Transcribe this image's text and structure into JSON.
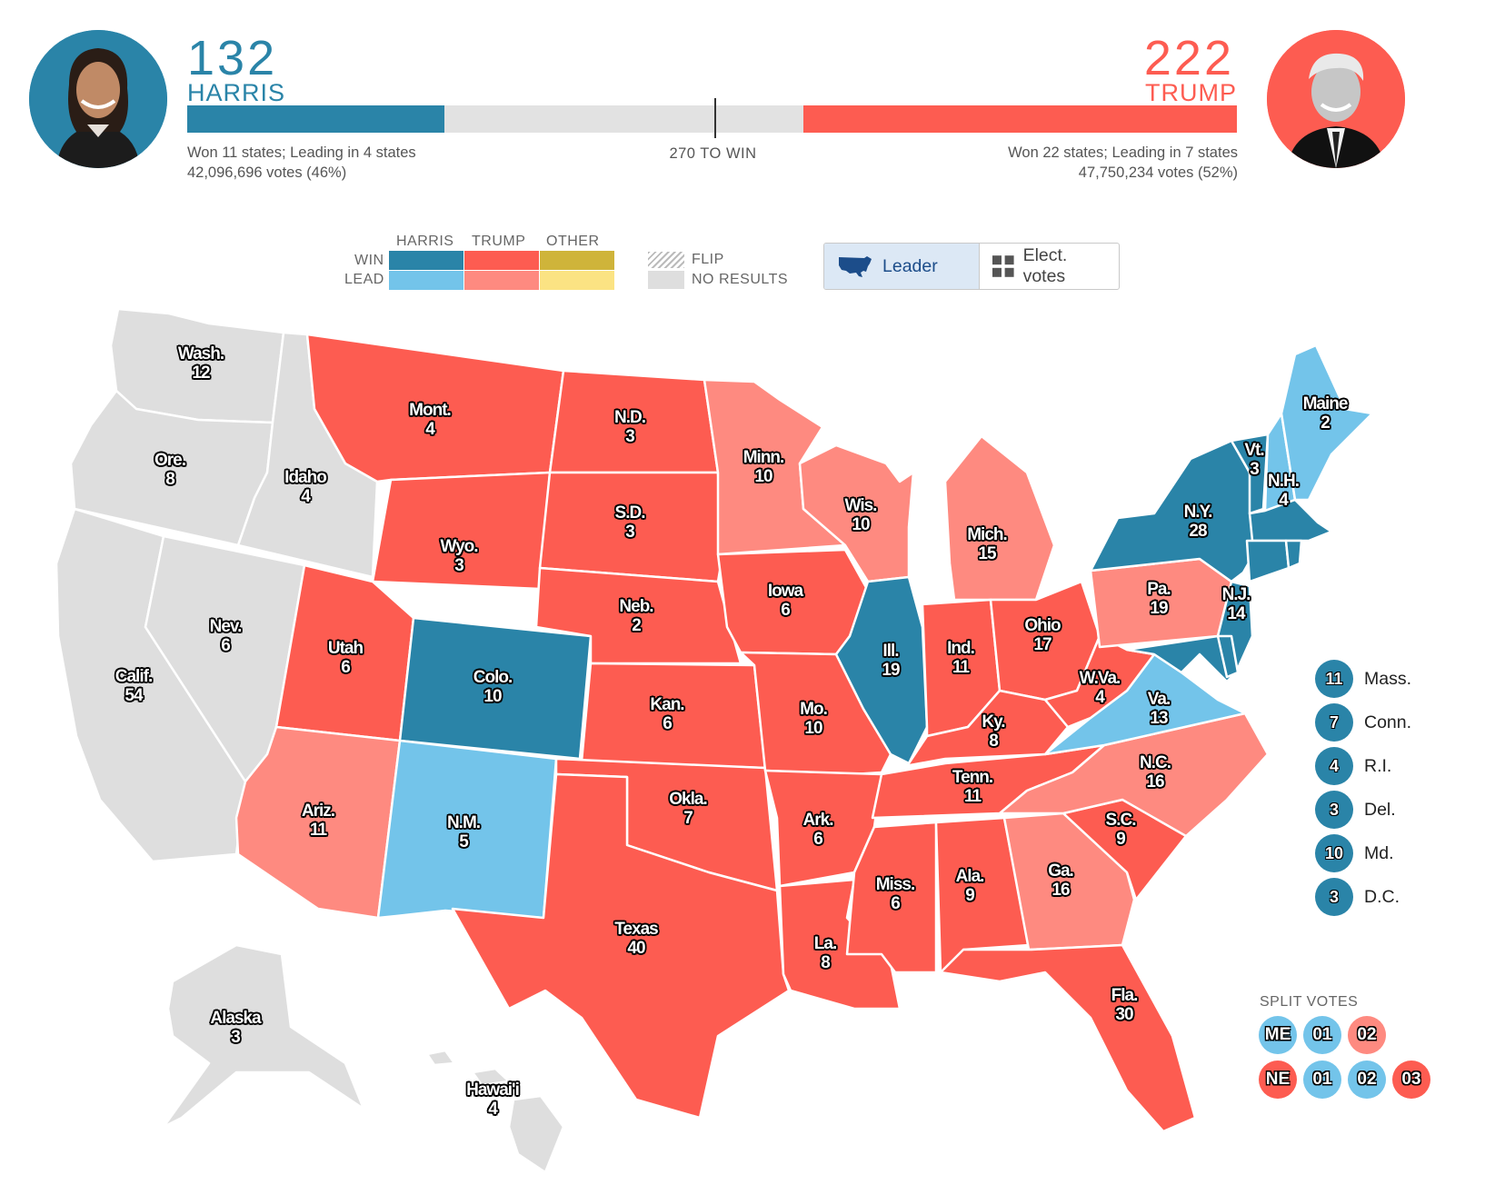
{
  "harris": {
    "ev": "132",
    "name": "HARRIS",
    "states_line": "Won 11 states; Leading in 4 states",
    "votes_line": "42,096,696 votes (46%)",
    "color": "#2a84a8"
  },
  "trump": {
    "ev": "222",
    "name": "TRUMP",
    "states_line": "Won 22 states; Leading in 7 states",
    "votes_line": "47,750,234 votes (52%)",
    "color": "#fd5c51"
  },
  "progress": {
    "harris_ev": 132,
    "trump_ev": 222,
    "total_ev": 538,
    "win_threshold": 270,
    "label": "270 TO WIN"
  },
  "legend": {
    "col_harris": "HARRIS",
    "col_trump": "TRUMP",
    "col_other": "OTHER",
    "row_win": "WIN",
    "row_lead": "LEAD",
    "flip": "FLIP",
    "no_results": "NO RESULTS",
    "colors": {
      "harris_win": "#2a84a8",
      "harris_lead": "#73c4ea",
      "trump_win": "#fd5c51",
      "trump_lead": "#fe8a80",
      "other_win": "#cfb43a",
      "other_lead": "#fbe383",
      "none": "#dedede"
    }
  },
  "toggle": {
    "leader": "Leader",
    "elect_votes": "Elect. votes",
    "selected": "leader",
    "leader_icon": "us-map-icon",
    "ev_icon": "grid-icon"
  },
  "states": [
    {
      "id": "wa",
      "name": "Wash.",
      "ev": "12",
      "status": "none"
    },
    {
      "id": "or",
      "name": "Ore.",
      "ev": "8",
      "status": "none"
    },
    {
      "id": "ca",
      "name": "Calif.",
      "ev": "54",
      "status": "none"
    },
    {
      "id": "id",
      "name": "Idaho",
      "ev": "4",
      "status": "none"
    },
    {
      "id": "nv",
      "name": "Nev.",
      "ev": "6",
      "status": "none"
    },
    {
      "id": "mt",
      "name": "Mont.",
      "ev": "4",
      "status": "trump_win"
    },
    {
      "id": "wy",
      "name": "Wyo.",
      "ev": "3",
      "status": "trump_win"
    },
    {
      "id": "ut",
      "name": "Utah",
      "ev": "6",
      "status": "trump_win"
    },
    {
      "id": "az",
      "name": "Ariz.",
      "ev": "11",
      "status": "trump_lead"
    },
    {
      "id": "co",
      "name": "Colo.",
      "ev": "10",
      "status": "harris_win"
    },
    {
      "id": "nm",
      "name": "N.M.",
      "ev": "5",
      "status": "harris_lead"
    },
    {
      "id": "nd",
      "name": "N.D.",
      "ev": "3",
      "status": "trump_win"
    },
    {
      "id": "sd",
      "name": "S.D.",
      "ev": "3",
      "status": "trump_win"
    },
    {
      "id": "ne",
      "name": "Neb.",
      "ev": "2",
      "status": "trump_win"
    },
    {
      "id": "ks",
      "name": "Kan.",
      "ev": "6",
      "status": "trump_win"
    },
    {
      "id": "ok",
      "name": "Okla.",
      "ev": "7",
      "status": "trump_win"
    },
    {
      "id": "tx",
      "name": "Texas",
      "ev": "40",
      "status": "trump_win"
    },
    {
      "id": "mn",
      "name": "Minn.",
      "ev": "10",
      "status": "trump_lead"
    },
    {
      "id": "ia",
      "name": "Iowa",
      "ev": "6",
      "status": "trump_win"
    },
    {
      "id": "mo",
      "name": "Mo.",
      "ev": "10",
      "status": "trump_win"
    },
    {
      "id": "ar",
      "name": "Ark.",
      "ev": "6",
      "status": "trump_win"
    },
    {
      "id": "la",
      "name": "La.",
      "ev": "8",
      "status": "trump_win"
    },
    {
      "id": "wi",
      "name": "Wis.",
      "ev": "10",
      "status": "trump_lead"
    },
    {
      "id": "il",
      "name": "Ill.",
      "ev": "19",
      "status": "harris_win"
    },
    {
      "id": "mi",
      "name": "Mich.",
      "ev": "15",
      "status": "trump_lead"
    },
    {
      "id": "in",
      "name": "Ind.",
      "ev": "11",
      "status": "trump_win"
    },
    {
      "id": "oh",
      "name": "Ohio",
      "ev": "17",
      "status": "trump_win"
    },
    {
      "id": "ky",
      "name": "Ky.",
      "ev": "8",
      "status": "trump_win"
    },
    {
      "id": "tn",
      "name": "Tenn.",
      "ev": "11",
      "status": "trump_win"
    },
    {
      "id": "ms",
      "name": "Miss.",
      "ev": "6",
      "status": "trump_win"
    },
    {
      "id": "al",
      "name": "Ala.",
      "ev": "9",
      "status": "trump_win"
    },
    {
      "id": "ga",
      "name": "Ga.",
      "ev": "16",
      "status": "trump_lead"
    },
    {
      "id": "fl",
      "name": "Fla.",
      "ev": "30",
      "status": "trump_win"
    },
    {
      "id": "sc",
      "name": "S.C.",
      "ev": "9",
      "status": "trump_win"
    },
    {
      "id": "nc",
      "name": "N.C.",
      "ev": "16",
      "status": "trump_lead"
    },
    {
      "id": "va",
      "name": "Va.",
      "ev": "13",
      "status": "harris_lead"
    },
    {
      "id": "wv",
      "name": "W.Va.",
      "ev": "4",
      "status": "trump_win"
    },
    {
      "id": "pa",
      "name": "Pa.",
      "ev": "19",
      "status": "trump_lead"
    },
    {
      "id": "ny",
      "name": "N.Y.",
      "ev": "28",
      "status": "harris_win"
    },
    {
      "id": "nj",
      "name": "N.J.",
      "ev": "14",
      "status": "harris_win"
    },
    {
      "id": "vt",
      "name": "Vt.",
      "ev": "3",
      "status": "harris_win"
    },
    {
      "id": "nh",
      "name": "N.H.",
      "ev": "4",
      "status": "harris_lead"
    },
    {
      "id": "me",
      "name": "Maine",
      "ev": "2",
      "status": "harris_lead"
    },
    {
      "id": "ak",
      "name": "Alaska",
      "ev": "3",
      "status": "none"
    },
    {
      "id": "hi",
      "name": "Hawai'i",
      "ev": "4",
      "status": "none"
    }
  ],
  "small_states": [
    {
      "name": "Mass.",
      "ev": "11",
      "status": "harris_win"
    },
    {
      "name": "Conn.",
      "ev": "7",
      "status": "harris_win"
    },
    {
      "name": "R.I.",
      "ev": "4",
      "status": "harris_win"
    },
    {
      "name": "Del.",
      "ev": "3",
      "status": "harris_win"
    },
    {
      "name": "Md.",
      "ev": "10",
      "status": "harris_win"
    },
    {
      "name": "D.C.",
      "ev": "3",
      "status": "harris_win"
    }
  ],
  "split_votes": {
    "title": "SPLIT VOTES",
    "maine": [
      {
        "label": "ME",
        "status": "harris_lead"
      },
      {
        "label": "01",
        "status": "harris_lead"
      },
      {
        "label": "02",
        "status": "trump_lead"
      }
    ],
    "nebraska": [
      {
        "label": "NE",
        "status": "trump_win"
      },
      {
        "label": "01",
        "status": "harris_lead"
      },
      {
        "label": "02",
        "status": "harris_lead"
      },
      {
        "label": "03",
        "status": "trump_win"
      }
    ]
  }
}
